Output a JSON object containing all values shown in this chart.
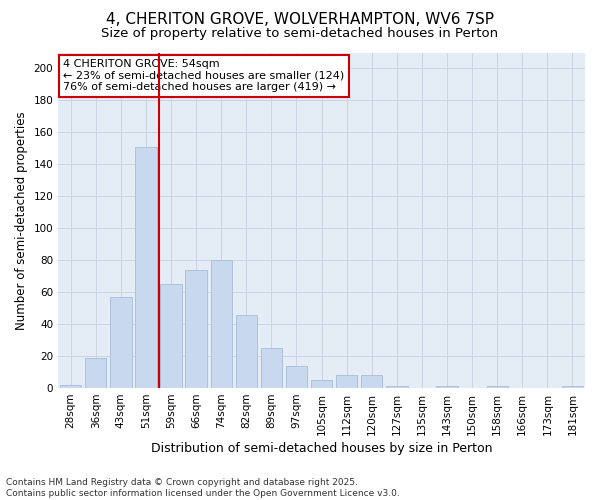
{
  "title1": "4, CHERITON GROVE, WOLVERHAMPTON, WV6 7SP",
  "title2": "Size of property relative to semi-detached houses in Perton",
  "xlabel": "Distribution of semi-detached houses by size in Perton",
  "ylabel": "Number of semi-detached properties",
  "categories": [
    "28sqm",
    "36sqm",
    "43sqm",
    "51sqm",
    "59sqm",
    "66sqm",
    "74sqm",
    "82sqm",
    "89sqm",
    "97sqm",
    "105sqm",
    "112sqm",
    "120sqm",
    "127sqm",
    "135sqm",
    "143sqm",
    "150sqm",
    "158sqm",
    "166sqm",
    "173sqm",
    "181sqm"
  ],
  "values": [
    2,
    19,
    57,
    151,
    65,
    74,
    80,
    46,
    25,
    14,
    5,
    8,
    8,
    1,
    0,
    1,
    0,
    1,
    0,
    0,
    1
  ],
  "bar_color": "#c8d8ee",
  "bar_edge_color": "#a8bcd8",
  "vline_x": 3.5,
  "vline_color": "#cc0000",
  "annotation_line1": "4 CHERITON GROVE: 54sqm",
  "annotation_line2": "← 23% of semi-detached houses are smaller (124)",
  "annotation_line3": "76% of semi-detached houses are larger (419) →",
  "annotation_box_color": "#ffffff",
  "annotation_box_edge": "#cc0000",
  "ylim": [
    0,
    210
  ],
  "yticks": [
    0,
    20,
    40,
    60,
    80,
    100,
    120,
    140,
    160,
    180,
    200
  ],
  "grid_color": "#ccd4e4",
  "bg_color": "#e4ecf6",
  "footer": "Contains HM Land Registry data © Crown copyright and database right 2025.\nContains public sector information licensed under the Open Government Licence v3.0.",
  "title_fontsize": 11,
  "subtitle_fontsize": 9.5,
  "axis_label_fontsize": 8.5,
  "tick_fontsize": 7.5,
  "annotation_fontsize": 8,
  "footer_fontsize": 6.5
}
